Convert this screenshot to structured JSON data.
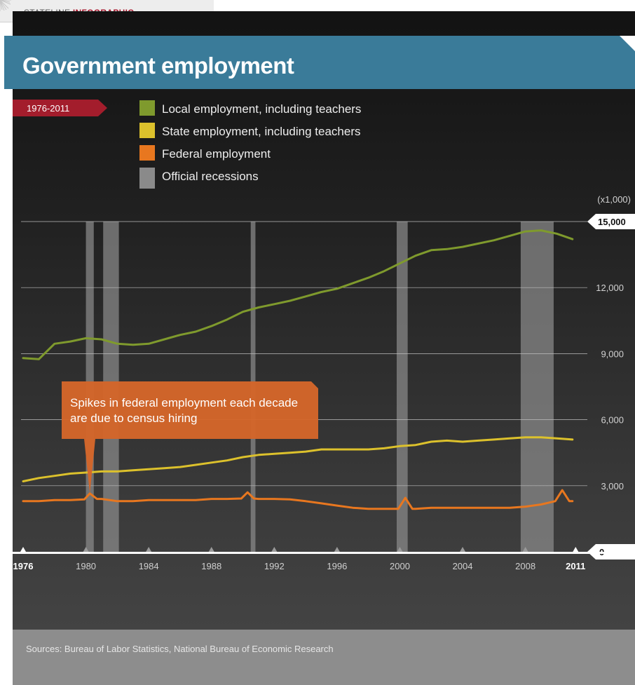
{
  "header": {
    "tag_light": "STATELINE",
    "tag_bold": "INFOGRAPHIC",
    "title": "Government employment"
  },
  "period_badge": "1976-2011",
  "legend": [
    {
      "label": "Local employment, including teachers",
      "color": "#7f9a2d"
    },
    {
      "label": "State employment, including teachers",
      "color": "#dcc12c"
    },
    {
      "label": "Federal employment",
      "color": "#e8771f"
    },
    {
      "label": "Official recessions",
      "color": "#8a8a8a"
    }
  ],
  "annotation": "Spikes in federal employment each decade are due to census hiring",
  "source": "Sources: Bureau of Labor Statistics, National Bureau of Economic Research",
  "chart_data": {
    "type": "line",
    "unit_label": "(x1,000)",
    "xlim": [
      1976,
      2011.5
    ],
    "ylim": [
      0,
      15000
    ],
    "y_ticks": [
      {
        "value": 15000,
        "label": "15,000",
        "highlight": true
      },
      {
        "value": 12000,
        "label": "12,000"
      },
      {
        "value": 9000,
        "label": "9,000"
      },
      {
        "value": 6000,
        "label": "6,000"
      },
      {
        "value": 3000,
        "label": "3,000"
      },
      {
        "value": 0,
        "label": "0",
        "highlight": true
      }
    ],
    "x_ticks": [
      {
        "value": 1976,
        "label": "1976",
        "bold": true
      },
      {
        "value": 1980,
        "label": "1980"
      },
      {
        "value": 1984,
        "label": "1984"
      },
      {
        "value": 1988,
        "label": "1988"
      },
      {
        "value": 1992,
        "label": "1992"
      },
      {
        "value": 1996,
        "label": "1996"
      },
      {
        "value": 2000,
        "label": "2000"
      },
      {
        "value": 2004,
        "label": "2004"
      },
      {
        "value": 2008,
        "label": "2008"
      },
      {
        "value": 2011.2,
        "label": "2011",
        "bold": true
      }
    ],
    "recessions": [
      [
        1980.0,
        1980.5
      ],
      [
        1981.1,
        1982.1
      ],
      [
        1990.5,
        1990.8
      ],
      [
        1999.8,
        2000.5
      ],
      [
        2007.7,
        2009.8
      ]
    ],
    "series": [
      {
        "name": "Local employment, including teachers",
        "color": "#7f9a2d",
        "x": [
          1976,
          1977,
          1978,
          1979,
          1980,
          1981,
          1982,
          1983,
          1984,
          1985,
          1986,
          1987,
          1988,
          1989,
          1990,
          1991,
          1992,
          1993,
          1994,
          1995,
          1996,
          1997,
          1998,
          1999,
          2000,
          2001,
          2002,
          2003,
          2004,
          2005,
          2006,
          2007,
          2008,
          2009,
          2010,
          2011
        ],
        "values": [
          8800,
          8750,
          9450,
          9550,
          9700,
          9650,
          9450,
          9400,
          9450,
          9650,
          9850,
          10000,
          10250,
          10550,
          10900,
          11100,
          11250,
          11400,
          11600,
          11800,
          11950,
          12200,
          12450,
          12750,
          13100,
          13450,
          13700,
          13750,
          13850,
          14000,
          14150,
          14350,
          14550,
          14600,
          14450,
          14200
        ]
      },
      {
        "name": "State employment, including teachers",
        "color": "#dcc12c",
        "x": [
          1976,
          1977,
          1978,
          1979,
          1980,
          1981,
          1982,
          1983,
          1984,
          1985,
          1986,
          1987,
          1988,
          1989,
          1990,
          1991,
          1992,
          1993,
          1994,
          1995,
          1996,
          1997,
          1998,
          1999,
          2000,
          2001,
          2002,
          2003,
          2004,
          2005,
          2006,
          2007,
          2008,
          2009,
          2010,
          2011
        ],
        "values": [
          3200,
          3350,
          3450,
          3550,
          3600,
          3650,
          3650,
          3700,
          3750,
          3800,
          3850,
          3950,
          4050,
          4150,
          4300,
          4400,
          4450,
          4500,
          4550,
          4650,
          4650,
          4650,
          4650,
          4700,
          4800,
          4850,
          5000,
          5050,
          5000,
          5050,
          5100,
          5150,
          5200,
          5200,
          5150,
          5100
        ]
      },
      {
        "name": "Federal employment",
        "color": "#e8771f",
        "x": [
          1976,
          1977,
          1978,
          1979,
          1979.9,
          1980.25,
          1980.7,
          1981,
          1982,
          1983,
          1984,
          1985,
          1986,
          1987,
          1988,
          1989,
          1989.9,
          1990.3,
          1990.7,
          1991,
          1992,
          1993,
          1994,
          1995,
          1996,
          1997,
          1998,
          1999,
          1999.9,
          2000.35,
          2000.8,
          2001,
          2002,
          2003,
          2004,
          2005,
          2006,
          2007,
          2008,
          2009,
          2009.9,
          2010.35,
          2010.8,
          2011
        ],
        "values": [
          2300,
          2300,
          2350,
          2350,
          2380,
          2650,
          2400,
          2400,
          2300,
          2300,
          2350,
          2350,
          2350,
          2350,
          2400,
          2400,
          2420,
          2700,
          2420,
          2400,
          2400,
          2380,
          2300,
          2200,
          2100,
          2000,
          1950,
          1950,
          1950,
          2450,
          1950,
          1950,
          2000,
          2000,
          2000,
          2000,
          2000,
          2000,
          2050,
          2150,
          2300,
          2800,
          2300,
          2300
        ]
      }
    ]
  }
}
